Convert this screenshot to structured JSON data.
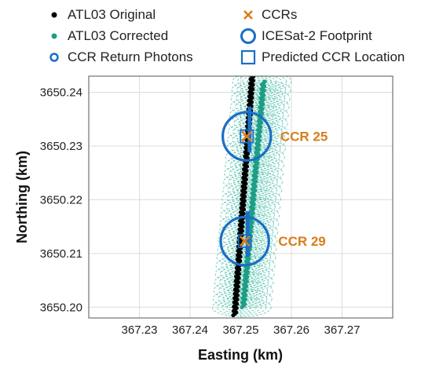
{
  "legend": {
    "items": [
      {
        "label": "ATL03 Original",
        "icon": "black-dot-icon",
        "color": "#000000"
      },
      {
        "label": "ATL03 Corrected",
        "icon": "teal-dot-icon",
        "color": "#1e9e86"
      },
      {
        "label": "CCR Return Photons",
        "icon": "blue-ring-icon",
        "color": "#1a6fc4"
      },
      {
        "label": "CCRs",
        "icon": "orange-x-icon",
        "color": "#e07b1a"
      },
      {
        "label": "ICESat-2 Footprint",
        "icon": "blue-large-circle-icon",
        "color": "#1a6fc4"
      },
      {
        "label": "Predicted CCR Location",
        "icon": "blue-square-icon",
        "color": "#1a6fc4"
      }
    ]
  },
  "chart_data": {
    "type": "scatter",
    "xlabel": "Easting (km)",
    "ylabel": "Northing (km)",
    "xlim": [
      367.22,
      367.28
    ],
    "ylim": [
      3650.198,
      3650.243
    ],
    "xticks": [
      367.23,
      367.24,
      367.25,
      367.26,
      367.27
    ],
    "yticks": [
      3650.2,
      3650.21,
      3650.22,
      3650.23,
      3650.24
    ],
    "xtick_labels": [
      "367.23",
      "367.24",
      "367.25",
      "367.26",
      "367.27"
    ],
    "ytick_labels": [
      "3650.20",
      "3650.21",
      "3650.22",
      "3650.23",
      "3650.24"
    ],
    "grid": true,
    "colors": {
      "original": "#000000",
      "corrected": "#1e9e86",
      "footprint": "#1a6fc4",
      "ccr": "#e07b1a",
      "ccr_label": "#d87c1a",
      "hatch": "#2bb39a"
    },
    "series": [
      {
        "name": "ATL03 Original",
        "track": {
          "x_start": 367.2488,
          "y_start": 3650.1985,
          "x_end": 367.2523,
          "y_end": 3650.2435
        }
      },
      {
        "name": "ATL03 Corrected",
        "track": {
          "x_start": 367.2505,
          "y_start": 3650.2,
          "x_end": 367.2545,
          "y_end": 3650.242
        }
      }
    ],
    "ccrs": [
      {
        "label": "CCR 25",
        "x": 367.2512,
        "y": 3650.2318
      },
      {
        "label": "CCR 29",
        "x": 367.2508,
        "y": 3650.2123
      }
    ],
    "footprint_diameter_km": 0.0095
  }
}
